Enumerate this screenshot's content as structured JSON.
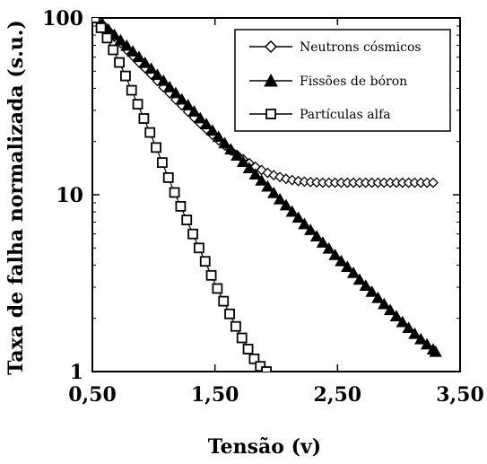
{
  "chart_data": {
    "type": "scatter",
    "title": "",
    "xlabel": "Tensão (v)",
    "ylabel": "Taxa de falha normalizada (s.u.)",
    "xlim": [
      0.5,
      3.5
    ],
    "ylim": [
      1,
      100
    ],
    "yscale": "log",
    "grid": false,
    "legend_position": "top-right",
    "x_ticks": [
      {
        "value": 0.5,
        "label": "0,50"
      },
      {
        "value": 1.5,
        "label": "1,50"
      },
      {
        "value": 2.5,
        "label": "2,50"
      },
      {
        "value": 3.5,
        "label": "3,50"
      }
    ],
    "y_ticks": [
      {
        "value": 1,
        "label": "1"
      },
      {
        "value": 10,
        "label": "10"
      },
      {
        "value": 100,
        "label": "100"
      }
    ],
    "series": [
      {
        "name": "Neutrons cósmicos",
        "marker": "diamond-open",
        "color": "#000000",
        "points": [
          [
            0.52,
            100
          ],
          [
            0.58,
            92
          ],
          [
            0.63,
            85
          ],
          [
            0.68,
            78
          ],
          [
            0.73,
            72
          ],
          [
            0.78,
            66
          ],
          [
            0.83,
            61
          ],
          [
            0.88,
            56
          ],
          [
            0.93,
            52
          ],
          [
            0.98,
            48
          ],
          [
            1.03,
            44
          ],
          [
            1.08,
            40.5
          ],
          [
            1.13,
            37.5
          ],
          [
            1.18,
            34.5
          ],
          [
            1.23,
            32
          ],
          [
            1.28,
            29.5
          ],
          [
            1.33,
            27.3
          ],
          [
            1.38,
            25.3
          ],
          [
            1.43,
            23.5
          ],
          [
            1.48,
            21.8
          ],
          [
            1.53,
            20.3
          ],
          [
            1.58,
            19
          ],
          [
            1.63,
            17.8
          ],
          [
            1.68,
            16.8
          ],
          [
            1.73,
            15.9
          ],
          [
            1.78,
            15.1
          ],
          [
            1.83,
            14.4
          ],
          [
            1.88,
            13.8
          ],
          [
            1.93,
            13.3
          ],
          [
            1.98,
            12.9
          ],
          [
            2.03,
            12.6
          ],
          [
            2.08,
            12.3
          ],
          [
            2.13,
            12.1
          ],
          [
            2.18,
            11.95
          ],
          [
            2.23,
            11.85
          ],
          [
            2.28,
            11.8
          ],
          [
            2.33,
            11.75
          ],
          [
            2.38,
            11.7
          ],
          [
            2.43,
            11.7
          ],
          [
            2.48,
            11.7
          ],
          [
            2.53,
            11.7
          ],
          [
            2.58,
            11.7
          ],
          [
            2.63,
            11.7
          ],
          [
            2.68,
            11.7
          ],
          [
            2.73,
            11.7
          ],
          [
            2.78,
            11.7
          ],
          [
            2.83,
            11.7
          ],
          [
            2.88,
            11.7
          ],
          [
            2.93,
            11.7
          ],
          [
            2.98,
            11.7
          ],
          [
            3.03,
            11.7
          ],
          [
            3.08,
            11.7
          ],
          [
            3.13,
            11.7
          ],
          [
            3.18,
            11.7
          ],
          [
            3.23,
            11.7
          ],
          [
            3.28,
            11.7
          ]
        ]
      },
      {
        "name": "Fissões de bóron",
        "marker": "triangle-filled",
        "color": "#000000",
        "points": [
          [
            0.52,
            100
          ],
          [
            0.58,
            93
          ],
          [
            0.63,
            86
          ],
          [
            0.68,
            80
          ],
          [
            0.73,
            74.5
          ],
          [
            0.78,
            69.5
          ],
          [
            0.83,
            64.5
          ],
          [
            0.88,
            60
          ],
          [
            0.93,
            55.5
          ],
          [
            0.98,
            51.5
          ],
          [
            1.03,
            47.5
          ],
          [
            1.08,
            44
          ],
          [
            1.13,
            40.5
          ],
          [
            1.18,
            37.5
          ],
          [
            1.23,
            34.5
          ],
          [
            1.28,
            32
          ],
          [
            1.33,
            29.5
          ],
          [
            1.38,
            27
          ],
          [
            1.43,
            25
          ],
          [
            1.48,
            23
          ],
          [
            1.53,
            21.2
          ],
          [
            1.58,
            19.5
          ],
          [
            1.63,
            18
          ],
          [
            1.68,
            16.6
          ],
          [
            1.73,
            15.3
          ],
          [
            1.78,
            14.1
          ],
          [
            1.83,
            13
          ],
          [
            1.88,
            12
          ],
          [
            1.93,
            11.1
          ],
          [
            1.98,
            10.2
          ],
          [
            2.03,
            9.4
          ],
          [
            2.08,
            8.7
          ],
          [
            2.13,
            8.0
          ],
          [
            2.18,
            7.4
          ],
          [
            2.23,
            6.8
          ],
          [
            2.28,
            6.3
          ],
          [
            2.33,
            5.8
          ],
          [
            2.38,
            5.35
          ],
          [
            2.43,
            4.95
          ],
          [
            2.48,
            4.55
          ],
          [
            2.53,
            4.2
          ],
          [
            2.58,
            3.9
          ],
          [
            2.63,
            3.6
          ],
          [
            2.68,
            3.3
          ],
          [
            2.73,
            3.05
          ],
          [
            2.78,
            2.82
          ],
          [
            2.83,
            2.6
          ],
          [
            2.88,
            2.4
          ],
          [
            2.93,
            2.22
          ],
          [
            2.98,
            2.05
          ],
          [
            3.03,
            1.9
          ],
          [
            3.08,
            1.76
          ],
          [
            3.13,
            1.63
          ],
          [
            3.18,
            1.52
          ],
          [
            3.23,
            1.42
          ],
          [
            3.28,
            1.33
          ],
          [
            3.3,
            1.29
          ]
        ]
      },
      {
        "name": "Partículas alfa",
        "marker": "square-open",
        "color": "#000000",
        "points": [
          [
            0.52,
            100
          ],
          [
            0.57,
            88
          ],
          [
            0.62,
            77
          ],
          [
            0.67,
            66
          ],
          [
            0.72,
            56
          ],
          [
            0.77,
            47
          ],
          [
            0.82,
            39
          ],
          [
            0.87,
            32.5
          ],
          [
            0.92,
            27
          ],
          [
            0.97,
            22.5
          ],
          [
            1.02,
            18.5
          ],
          [
            1.07,
            15.2
          ],
          [
            1.12,
            12.5
          ],
          [
            1.17,
            10.3
          ],
          [
            1.22,
            8.6
          ],
          [
            1.27,
            7.2
          ],
          [
            1.32,
            6.0
          ],
          [
            1.37,
            5.0
          ],
          [
            1.42,
            4.2
          ],
          [
            1.47,
            3.5
          ],
          [
            1.52,
            2.95
          ],
          [
            1.57,
            2.5
          ],
          [
            1.62,
            2.12
          ],
          [
            1.67,
            1.8
          ],
          [
            1.72,
            1.55
          ],
          [
            1.77,
            1.34
          ],
          [
            1.82,
            1.18
          ],
          [
            1.87,
            1.07
          ],
          [
            1.92,
            1.0
          ]
        ]
      }
    ]
  }
}
